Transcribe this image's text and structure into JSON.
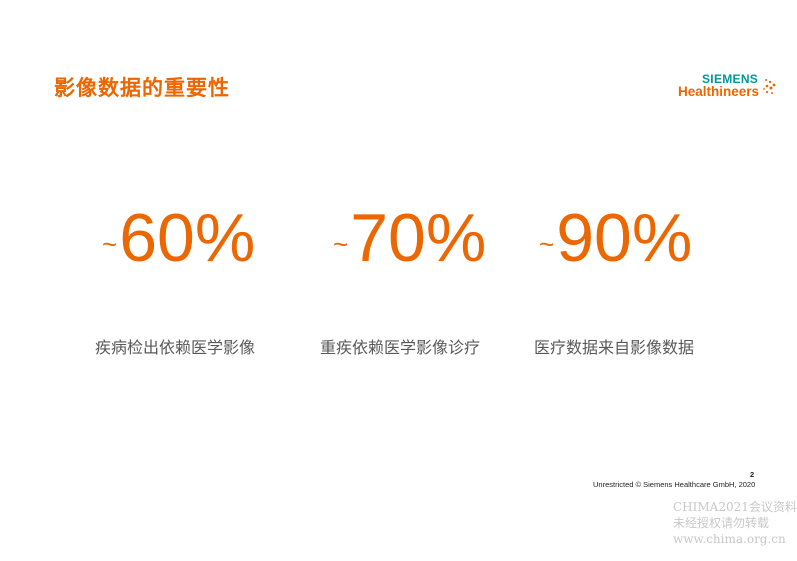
{
  "title": "影像数据的重要性",
  "logo": {
    "line1": "SIEMENS",
    "line2": "Healthineers"
  },
  "stats": [
    {
      "prefix": "~",
      "value": "60%",
      "label": "疾病检出依赖医学影像"
    },
    {
      "prefix": "~",
      "value": "70%",
      "label": "重疾依赖医学影像诊疗"
    },
    {
      "prefix": "~",
      "value": "90%",
      "label": "医疗数据来自影像数据"
    }
  ],
  "footer": {
    "text": "Unrestricted © Siemens Healthcare GmbH, 2020",
    "page": "2"
  },
  "watermark": [
    "CHIMA2021会议资料",
    "未经授权请勿转载",
    "www.chima.org.cn"
  ],
  "colors": {
    "accent": "#ec6602",
    "logo_teal": "#009999",
    "label_gray": "#595959"
  }
}
